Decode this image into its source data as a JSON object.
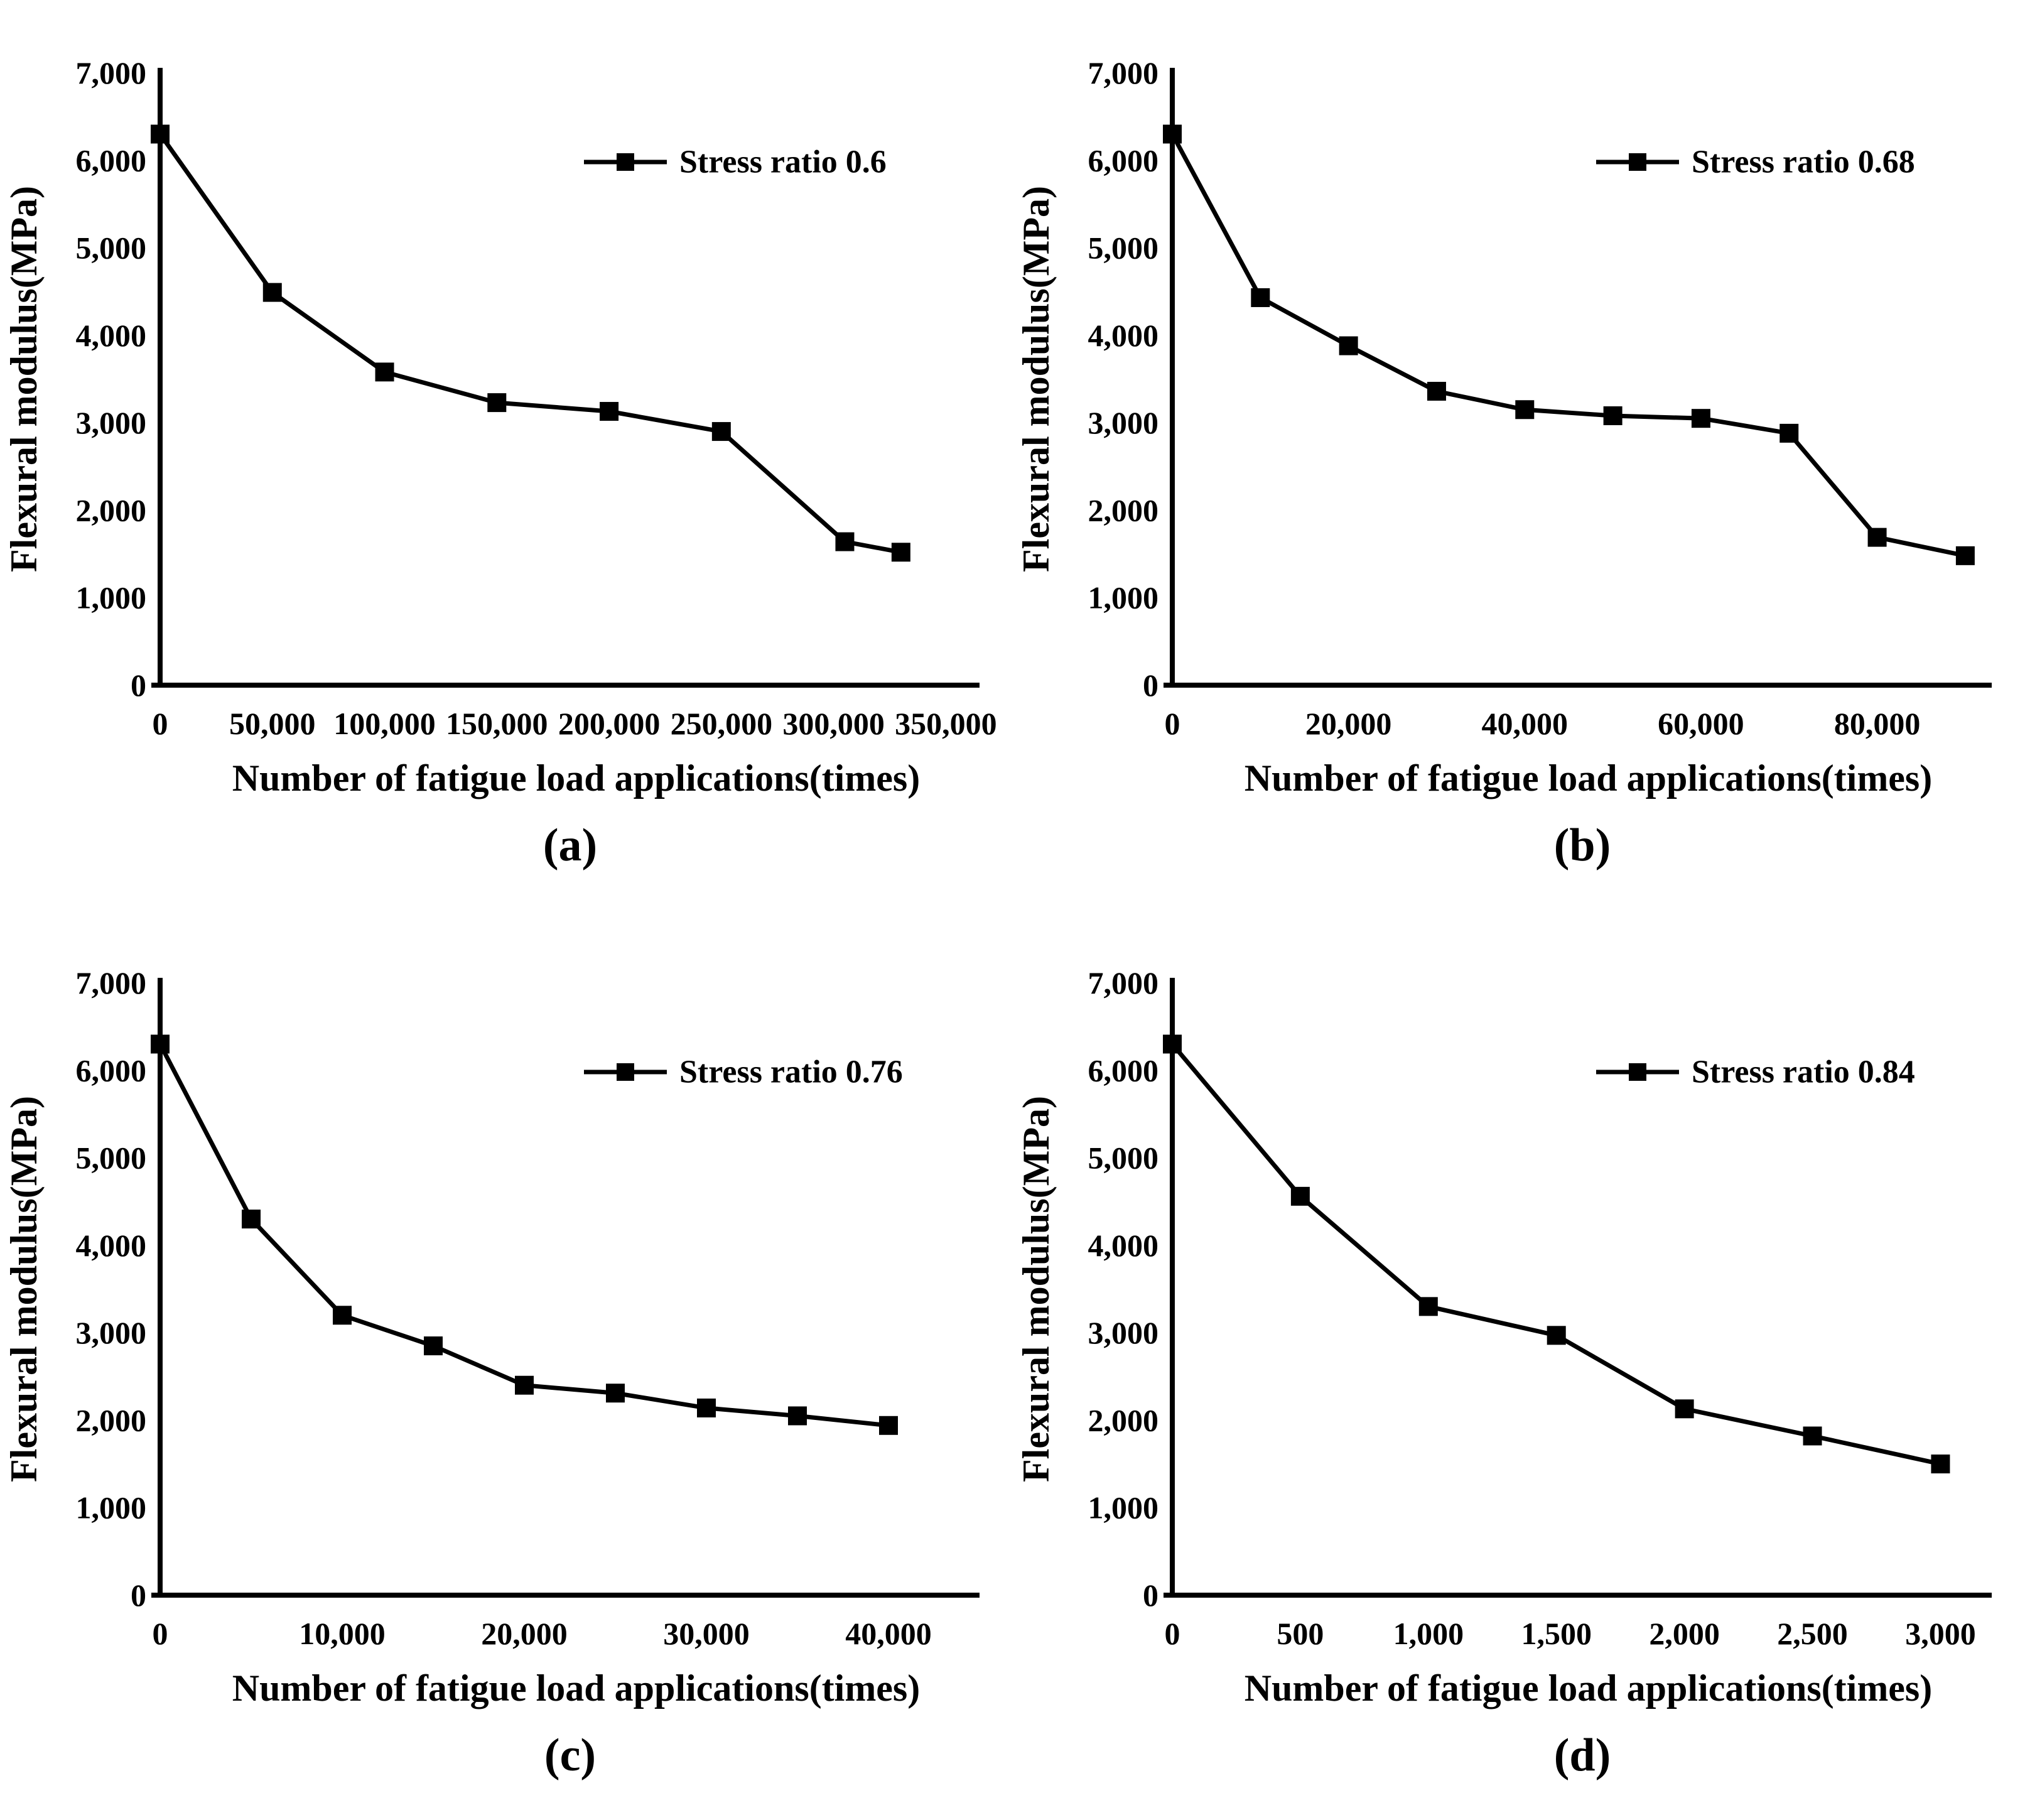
{
  "figure": {
    "background_color": "#ffffff",
    "series_color": "#000000",
    "ylabel": "Flexural modulus(MPa)",
    "xlabel": "Number of fatigue load applications(times)"
  },
  "chart_data": [
    {
      "type": "line",
      "panel_label": "(a)",
      "legend": "Stress ratio 0.6",
      "legend_position": "upper-right-inside",
      "xlabel": "Number of fatigue load applications(times)",
      "ylabel": "Flexural modulus(MPa)",
      "marker": "square",
      "color": "#000000",
      "grid": false,
      "x": [
        0,
        50000,
        100000,
        150000,
        200000,
        250000,
        305000,
        330000
      ],
      "y": [
        6300,
        4490,
        3580,
        3230,
        3130,
        2900,
        1640,
        1520
      ],
      "x_ticks": [
        0,
        50000,
        100000,
        150000,
        200000,
        250000,
        300000,
        350000
      ],
      "x_axis_max": 365000,
      "ylim": [
        0,
        7000
      ],
      "y_tick_step": 1000
    },
    {
      "type": "line",
      "panel_label": "(b)",
      "legend": "Stress ratio 0.68",
      "legend_position": "upper-right-inside",
      "xlabel": "Number of fatigue load applications(times)",
      "ylabel": "Flexural modulus(MPa)",
      "marker": "square",
      "color": "#000000",
      "grid": false,
      "x": [
        0,
        10000,
        20000,
        30000,
        40000,
        50000,
        60000,
        70000,
        80000,
        90000
      ],
      "y": [
        6300,
        4430,
        3880,
        3360,
        3150,
        3080,
        3050,
        2880,
        1690,
        1480
      ],
      "x_ticks": [
        0,
        20000,
        40000,
        60000,
        80000
      ],
      "x_axis_max": 93000,
      "ylim": [
        0,
        7000
      ],
      "y_tick_step": 1000
    },
    {
      "type": "line",
      "panel_label": "(c)",
      "legend": "Stress ratio  0.76",
      "legend_position": "upper-right-inside",
      "xlabel": "Number of fatigue load applications(times)",
      "ylabel": "Flexural modulus(MPa)",
      "marker": "square",
      "color": "#000000",
      "grid": false,
      "x": [
        0,
        5000,
        10000,
        15000,
        20000,
        25000,
        30000,
        35000,
        40000
      ],
      "y": [
        6300,
        4300,
        3200,
        2850,
        2400,
        2310,
        2140,
        2050,
        1940
      ],
      "x_ticks": [
        0,
        10000,
        20000,
        30000,
        40000
      ],
      "x_axis_max": 45000,
      "ylim": [
        0,
        7000
      ],
      "y_tick_step": 1000
    },
    {
      "type": "line",
      "panel_label": "(d)",
      "legend": "Stress ratio 0.84",
      "legend_position": "upper-right-inside",
      "xlabel": "Number of fatigue load applications(times)",
      "ylabel": "Flexural modulus(MPa)",
      "marker": "square",
      "color": "#000000",
      "grid": false,
      "x": [
        0,
        500,
        1000,
        1500,
        2000,
        2500,
        3000
      ],
      "y": [
        6300,
        4560,
        3300,
        2970,
        2130,
        1820,
        1500
      ],
      "x_ticks": [
        0,
        500,
        1000,
        1500,
        2000,
        2500,
        3000
      ],
      "x_axis_max": 3200,
      "ylim": [
        0,
        7000
      ],
      "y_tick_step": 1000
    }
  ]
}
